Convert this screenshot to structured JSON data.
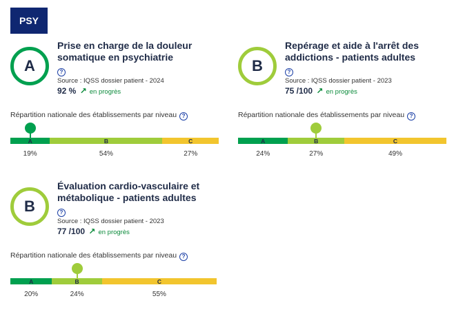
{
  "header": {
    "badge": "PSY"
  },
  "distribution_label": "Répartition nationale des établissements par niveau",
  "help_icon": "?",
  "cards": [
    {
      "grade": "A",
      "title": "Prise en charge de la douleur somatique en psychiatrie",
      "source": "Source : IQSS dossier patient - 2024",
      "score": "92 %",
      "trend": "en progrès",
      "trend_icon": "↗",
      "distribution": [
        {
          "label": "A",
          "percent": 19,
          "percent_text": "19%"
        },
        {
          "label": "B",
          "percent": 54,
          "percent_text": "54%"
        },
        {
          "label": "C",
          "percent": 27,
          "percent_text": "27%"
        }
      ]
    },
    {
      "grade": "B",
      "title": "Repérage et aide à l'arrêt des addictions - patients adultes",
      "source": "Source : IQSS dossier patient - 2023",
      "score": "75 /100",
      "trend": "en progrès",
      "trend_icon": "↗",
      "distribution": [
        {
          "label": "A",
          "percent": 24,
          "percent_text": "24%"
        },
        {
          "label": "B",
          "percent": 27,
          "percent_text": "27%"
        },
        {
          "label": "C",
          "percent": 49,
          "percent_text": "49%"
        }
      ]
    },
    {
      "grade": "B",
      "title": "Évaluation cardio-vasculaire et métabolique - patients adultes",
      "source": "Source : IQSS dossier patient - 2023",
      "score": "77 /100",
      "trend": "en progrès",
      "trend_icon": "↗",
      "distribution": [
        {
          "label": "A",
          "percent": 20,
          "percent_text": "20%"
        },
        {
          "label": "B",
          "percent": 24,
          "percent_text": "24%"
        },
        {
          "label": "C",
          "percent": 55,
          "percent_text": "55%"
        }
      ]
    }
  ]
}
